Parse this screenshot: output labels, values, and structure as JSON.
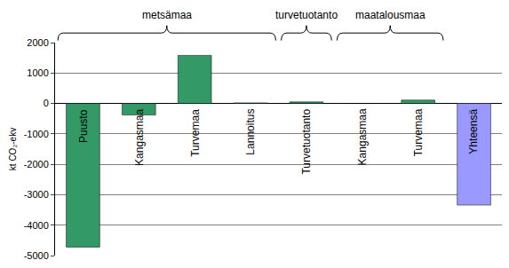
{
  "chart_data": {
    "type": "bar",
    "y_label": "kt CO₂-ekv",
    "categories": [
      "Puusto",
      "Kangasmaa",
      "Turvemaa",
      "Lannoitus",
      "Turvetuotanto",
      "Kangasmaa",
      "Turvemaa",
      "Yhteensä"
    ],
    "values": [
      -4720,
      -380,
      1580,
      20,
      50,
      0,
      110,
      -3340
    ],
    "colors": [
      "#339966",
      "#339966",
      "#339966",
      "#339966",
      "#339966",
      "#339966",
      "#339966",
      "#9999ff"
    ],
    "ylim": [
      -5000,
      2000
    ],
    "yticks": [
      -5000,
      -4000,
      -3000,
      -2000,
      -1000,
      0,
      1000,
      2000
    ],
    "grid": true,
    "groups": [
      {
        "label": "metsämaa",
        "start": 0,
        "end": 3
      },
      {
        "label": "turvetuotanto",
        "start": 4,
        "end": 4
      },
      {
        "label": "maatalousmaa",
        "start": 5,
        "end": 6
      }
    ]
  }
}
